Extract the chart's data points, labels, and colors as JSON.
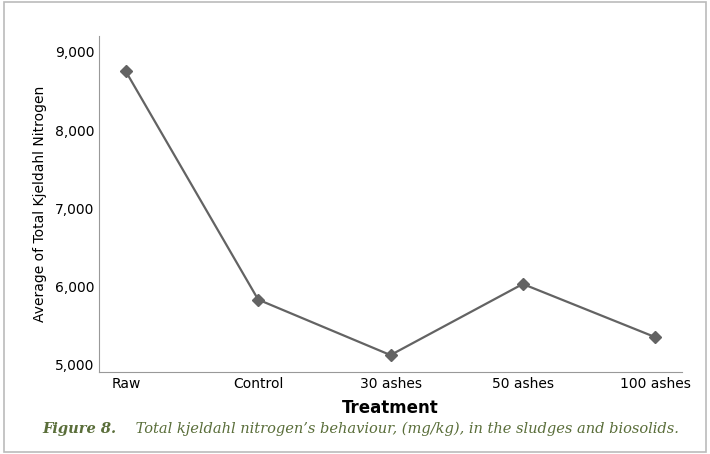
{
  "categories": [
    "Raw",
    "Control",
    "30 ashes",
    "50 ashes",
    "100 ashes"
  ],
  "values": [
    8750,
    5830,
    5120,
    6030,
    5350
  ],
  "xlabel": "Treatment",
  "ylabel": "Average of Total Kjeldahl Nitrogen",
  "ylim": [
    4900,
    9200
  ],
  "yticks": [
    5000,
    6000,
    7000,
    8000,
    9000
  ],
  "ytick_labels": [
    "5,000",
    "6,000",
    "7,000",
    "8,000",
    "9,000"
  ],
  "line_color": "#636363",
  "marker": "D",
  "marker_size": 6,
  "marker_facecolor": "#636363",
  "line_width": 1.6,
  "xlabel_fontsize": 12,
  "ylabel_fontsize": 10,
  "tick_fontsize": 10,
  "background_color": "#ffffff",
  "border_color": "#bbbbbb",
  "caption_bold": "Figure 8.",
  "caption_italic": " Total kjeldahl nitrogen’s behaviour, (mg/kg), in the sludges and biosolids.",
  "caption_color": "#5a6e3a",
  "caption_fontsize": 10.5
}
